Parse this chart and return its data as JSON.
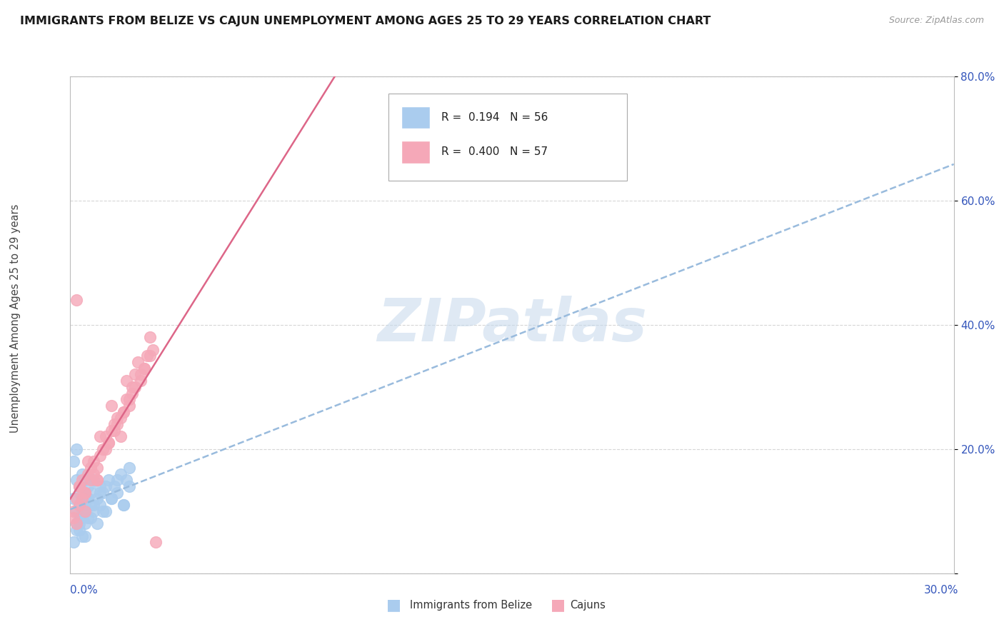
{
  "title": "IMMIGRANTS FROM BELIZE VS CAJUN UNEMPLOYMENT AMONG AGES 25 TO 29 YEARS CORRELATION CHART",
  "source": "Source: ZipAtlas.com",
  "ylabel": "Unemployment Among Ages 25 to 29 years",
  "xlim": [
    0.0,
    0.3
  ],
  "ylim": [
    0.0,
    0.8
  ],
  "yticks": [
    0.0,
    0.2,
    0.4,
    0.6,
    0.8
  ],
  "ytick_labels": [
    "",
    "20.0%",
    "40.0%",
    "60.0%",
    "80.0%"
  ],
  "xtick_left": "0.0%",
  "xtick_right": "30.0%",
  "legend_r_blue": "R =  0.194",
  "legend_n_blue": "N = 56",
  "legend_r_pink": "R =  0.400",
  "legend_n_pink": "N = 57",
  "legend_label_blue": "Immigrants from Belize",
  "legend_label_pink": "Cajuns",
  "blue_scatter_color": "#aaccee",
  "pink_scatter_color": "#f5a8b8",
  "blue_line_color": "#99bbdd",
  "pink_line_color": "#dd6688",
  "legend_text_color": "#3355bb",
  "watermark_text": "ZIPatlas",
  "watermark_color": "#c5d8ec",
  "blue_x": [
    0.001,
    0.001,
    0.002,
    0.002,
    0.002,
    0.003,
    0.003,
    0.003,
    0.003,
    0.004,
    0.004,
    0.004,
    0.005,
    0.005,
    0.005,
    0.005,
    0.006,
    0.006,
    0.006,
    0.007,
    0.007,
    0.008,
    0.008,
    0.009,
    0.01,
    0.01,
    0.011,
    0.012,
    0.013,
    0.014,
    0.015,
    0.016,
    0.017,
    0.018,
    0.019,
    0.02,
    0.002,
    0.003,
    0.004,
    0.005,
    0.001,
    0.002,
    0.003,
    0.004,
    0.005,
    0.006,
    0.007,
    0.008,
    0.009,
    0.01,
    0.011,
    0.012,
    0.014,
    0.016,
    0.018,
    0.02
  ],
  "blue_y": [
    0.12,
    0.18,
    0.15,
    0.1,
    0.08,
    0.13,
    0.11,
    0.09,
    0.14,
    0.16,
    0.12,
    0.1,
    0.08,
    0.13,
    0.11,
    0.15,
    0.09,
    0.14,
    0.12,
    0.11,
    0.13,
    0.1,
    0.15,
    0.12,
    0.14,
    0.11,
    0.13,
    0.1,
    0.15,
    0.12,
    0.14,
    0.13,
    0.16,
    0.11,
    0.15,
    0.14,
    0.2,
    0.07,
    0.09,
    0.06,
    0.05,
    0.07,
    0.08,
    0.06,
    0.1,
    0.12,
    0.09,
    0.11,
    0.08,
    0.13,
    0.1,
    0.14,
    0.12,
    0.15,
    0.11,
    0.17
  ],
  "pink_x": [
    0.001,
    0.002,
    0.003,
    0.004,
    0.005,
    0.006,
    0.007,
    0.008,
    0.009,
    0.01,
    0.011,
    0.012,
    0.013,
    0.014,
    0.015,
    0.016,
    0.017,
    0.018,
    0.019,
    0.02,
    0.021,
    0.022,
    0.024,
    0.025,
    0.027,
    0.028,
    0.002,
    0.003,
    0.005,
    0.007,
    0.009,
    0.012,
    0.015,
    0.018,
    0.021,
    0.024,
    0.001,
    0.004,
    0.008,
    0.013,
    0.017,
    0.022,
    0.026,
    0.003,
    0.006,
    0.01,
    0.014,
    0.019,
    0.023,
    0.027,
    0.002,
    0.005,
    0.009,
    0.016,
    0.02,
    0.025,
    0.029
  ],
  "pink_y": [
    0.1,
    0.12,
    0.14,
    0.15,
    0.13,
    0.16,
    0.17,
    0.18,
    0.15,
    0.19,
    0.2,
    0.22,
    0.21,
    0.23,
    0.24,
    0.25,
    0.22,
    0.26,
    0.28,
    0.27,
    0.3,
    0.32,
    0.31,
    0.33,
    0.35,
    0.36,
    0.44,
    0.11,
    0.13,
    0.15,
    0.17,
    0.2,
    0.23,
    0.26,
    0.29,
    0.32,
    0.09,
    0.12,
    0.16,
    0.21,
    0.25,
    0.3,
    0.35,
    0.14,
    0.18,
    0.22,
    0.27,
    0.31,
    0.34,
    0.38,
    0.08,
    0.1,
    0.15,
    0.24,
    0.28,
    0.33,
    0.05
  ]
}
